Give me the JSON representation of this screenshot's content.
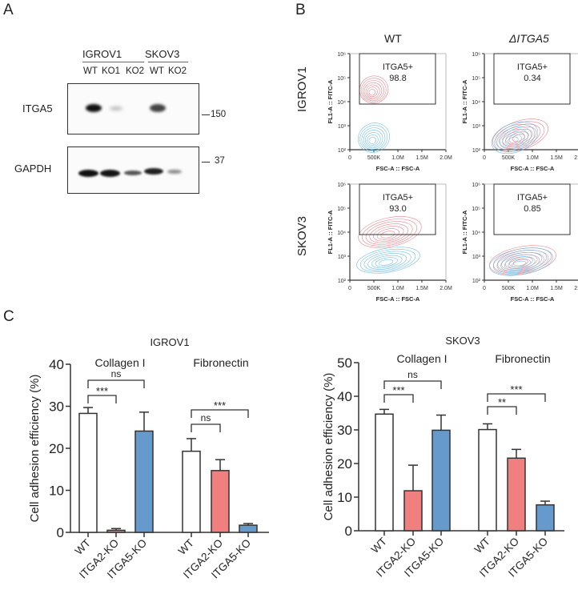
{
  "panels": {
    "A": {
      "letter": "A",
      "cell_lines": [
        {
          "name": "IGROV1",
          "lanes": [
            "WT",
            "KO1",
            "KO2"
          ]
        },
        {
          "name": "SKOV3",
          "lanes": [
            "WT",
            "KO2"
          ]
        }
      ],
      "lane_labels": "WT  KO1  KO2  WT  KO2",
      "blots": [
        {
          "protein": "ITGA5",
          "marker": "150",
          "band_intensities": [
            0.95,
            0.12,
            0.03,
            0.7,
            0.02
          ]
        },
        {
          "protein": "GAPDH",
          "marker": "37",
          "band_intensities": [
            1.0,
            0.95,
            0.55,
            0.8,
            0.4
          ]
        }
      ]
    },
    "B": {
      "letter": "B",
      "columns": [
        "WT",
        "ΔITGA5"
      ],
      "rows": [
        "IGROV1",
        "SKOV3"
      ],
      "y_axis_label": "FL1-A :: FITC-A",
      "x_axis_label": "FSC-A :: FSC-A",
      "x_ticks": [
        "0",
        "500K",
        "1.0M",
        "1.5M",
        "2.0M"
      ],
      "y_ticks": [
        "10²",
        "10³",
        "10⁴",
        "10⁵",
        "10⁶"
      ],
      "gate_label": "ITGA5+",
      "plots": [
        {
          "row": "IGROV1",
          "column": "WT",
          "gate_value": "98.8"
        },
        {
          "row": "IGROV1",
          "column": "ΔITGA5",
          "gate_value": "0.34"
        },
        {
          "row": "SKOV3",
          "column": "WT",
          "gate_value": "93.0"
        },
        {
          "row": "SKOV3",
          "column": "ΔITGA5",
          "gate_value": "0.85"
        }
      ]
    },
    "C": {
      "letter": "C"
    }
  },
  "colors": {
    "wt": "#ffffff",
    "itga2_ko": "#f08080",
    "itga5_ko": "#6699cc",
    "axis": "#333333",
    "flow_red": "#e8707a",
    "flow_blue": "#5ab4e0"
  },
  "chart_data": [
    {
      "type": "bar",
      "title": "IGROV1",
      "ylabel": "Cell adhesion efficiency (%)",
      "xlabel": "",
      "ylim": [
        0,
        40
      ],
      "yticks": [
        0,
        10,
        20,
        30,
        40
      ],
      "groups": [
        {
          "name": "Collagen I",
          "categories": [
            "WT",
            "ITGA2-KO",
            "ITGA5-KO"
          ],
          "values": [
            28.3,
            0.5,
            24.1
          ],
          "errors": [
            1.4,
            0.4,
            4.5
          ],
          "significance": [
            {
              "from": 0,
              "to": 1,
              "label": "***"
            },
            {
              "from": 0,
              "to": 2,
              "label": "ns"
            }
          ]
        },
        {
          "name": "Fibronectin",
          "categories": [
            "WT",
            "ITGA2-KO",
            "ITGA5-KO"
          ],
          "values": [
            19.3,
            14.7,
            1.7
          ],
          "errors": [
            3.0,
            2.6,
            0.4
          ],
          "significance": [
            {
              "from": 0,
              "to": 1,
              "label": "ns"
            },
            {
              "from": 0,
              "to": 2,
              "label": "***"
            }
          ]
        }
      ]
    },
    {
      "type": "bar",
      "title": "SKOV3",
      "ylabel": "Cell adhesion efficiency (%)",
      "xlabel": "",
      "ylim": [
        0,
        50
      ],
      "yticks": [
        0,
        10,
        20,
        30,
        40,
        50
      ],
      "groups": [
        {
          "name": "Collagen I",
          "categories": [
            "WT",
            "ITGA2-KO",
            "ITGA5-KO"
          ],
          "values": [
            34.7,
            11.9,
            29.9
          ],
          "errors": [
            1.4,
            7.6,
            4.5
          ],
          "significance": [
            {
              "from": 0,
              "to": 1,
              "label": "***"
            },
            {
              "from": 0,
              "to": 2,
              "label": "ns"
            }
          ]
        },
        {
          "name": "Fibronectin",
          "categories": [
            "WT",
            "ITGA2-KO",
            "ITGA5-KO"
          ],
          "values": [
            30.1,
            21.6,
            7.7
          ],
          "errors": [
            1.7,
            2.6,
            1.1
          ],
          "significance": [
            {
              "from": 0,
              "to": 1,
              "label": "**"
            },
            {
              "from": 0,
              "to": 2,
              "label": "***"
            }
          ]
        }
      ]
    }
  ]
}
